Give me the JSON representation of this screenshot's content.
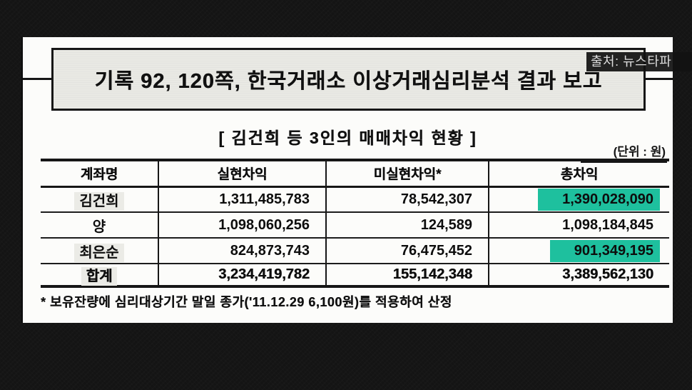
{
  "page": {
    "source_badge": "출처: 뉴스타파",
    "title": "기록 92, 120쪽, 한국거래소 이상거래심리분석 결과 보고",
    "subtitle": "[ 김건희 등 3인의 매매차익 현황 ]",
    "unit_label": "(단위 : 원)",
    "footnote": "* 보유잔량에 심리대상기간 말일 종가('11.12.29 6,100원)를 적용하여 산정"
  },
  "table": {
    "columns": [
      "계좌명",
      "실현차익",
      "미실현차익*",
      "총차익"
    ],
    "rows": [
      {
        "name": "김건희",
        "realized": "1,311,485,783",
        "unrealized": "78,542,307",
        "total": "1,390,028,090",
        "total_highlighted": true
      },
      {
        "name": "양",
        "realized": "1,098,060,256",
        "unrealized": "124,589",
        "total": "1,098,184,845",
        "total_highlighted": false
      },
      {
        "name": "최은순",
        "realized": "824,873,743",
        "unrealized": "76,475,452",
        "total": "901,349,195",
        "total_highlighted": true
      },
      {
        "name": "합계",
        "realized": "3,234,419,782",
        "unrealized": "155,142,348",
        "total": "3,389,562,130",
        "total_highlighted": false,
        "is_total": true
      }
    ]
  },
  "colors": {
    "background": "#141414",
    "paper": "#fcfcfa",
    "title_box_fill": "#e9e9e4",
    "highlight_teal": "#1ec09e",
    "badge_bg": "#121212"
  }
}
